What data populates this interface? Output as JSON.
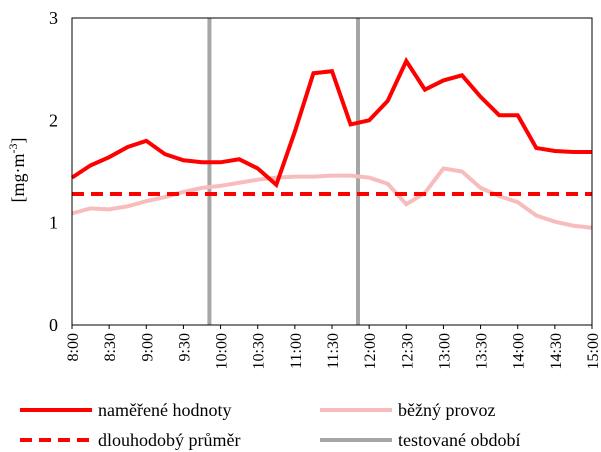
{
  "chart_data": {
    "type": "line",
    "y_label": {
      "base": "[mg·m",
      "sup": "-3",
      "end": "]"
    },
    "x": [
      8,
      8.25,
      8.5,
      8.75,
      9,
      9.25,
      9.5,
      9.75,
      10,
      10.25,
      10.5,
      10.75,
      11,
      11.25,
      11.5,
      11.75,
      12,
      12.25,
      12.5,
      12.75,
      13,
      13.25,
      13.5,
      13.75,
      14,
      14.25,
      14.5,
      14.75,
      15
    ],
    "xlim": [
      8,
      15
    ],
    "xticks": [
      {
        "value": 8,
        "label": "8:00"
      },
      {
        "value": 8.5,
        "label": "8:30"
      },
      {
        "value": 9,
        "label": "9:00"
      },
      {
        "value": 9.5,
        "label": "9:30"
      },
      {
        "value": 10,
        "label": "10:00"
      },
      {
        "value": 10.5,
        "label": "10:30"
      },
      {
        "value": 11,
        "label": "11:00"
      },
      {
        "value": 11.5,
        "label": "11:30"
      },
      {
        "value": 12,
        "label": "12:00"
      },
      {
        "value": 12.5,
        "label": "12:30"
      },
      {
        "value": 13,
        "label": "13:00"
      },
      {
        "value": 13.5,
        "label": "13:30"
      },
      {
        "value": 14,
        "label": "14:00"
      },
      {
        "value": 14.5,
        "label": "14:30"
      },
      {
        "value": 15,
        "label": "15:00"
      }
    ],
    "ylim": [
      0,
      3
    ],
    "yticks": [
      0,
      1,
      2,
      3
    ],
    "series": [
      {
        "name": "naměřené hodnoty",
        "color": "#ff0000",
        "dash": false,
        "values": [
          1.44,
          1.56,
          1.64,
          1.74,
          1.8,
          1.67,
          1.61,
          1.59,
          1.59,
          1.62,
          1.53,
          1.37,
          1.89,
          2.46,
          2.48,
          1.96,
          2.0,
          2.19,
          2.58,
          2.3,
          2.39,
          2.44,
          2.23,
          2.05,
          2.05,
          1.73,
          1.7,
          1.69,
          1.69
        ]
      },
      {
        "name": "běžný provoz",
        "color": "#f8bcbc",
        "dash": false,
        "values": [
          1.09,
          1.14,
          1.13,
          1.16,
          1.21,
          1.25,
          1.3,
          1.34,
          1.36,
          1.39,
          1.42,
          1.44,
          1.45,
          1.45,
          1.46,
          1.46,
          1.44,
          1.38,
          1.18,
          1.29,
          1.53,
          1.5,
          1.34,
          1.26,
          1.2,
          1.07,
          1.01,
          0.97,
          0.95
        ]
      },
      {
        "name": "dlouhodobý průměr",
        "color": "#ff0000",
        "dash": true,
        "values": [
          1.28,
          1.28,
          1.28,
          1.28,
          1.28,
          1.28,
          1.28,
          1.28,
          1.28,
          1.28,
          1.28,
          1.28,
          1.28,
          1.28,
          1.28,
          1.28,
          1.28,
          1.28,
          1.28,
          1.28,
          1.28,
          1.28,
          1.28,
          1.28,
          1.28,
          1.28,
          1.28,
          1.28,
          1.28
        ]
      }
    ],
    "test_period": {
      "name": "testované období",
      "color": "#a6a6a6",
      "x": [
        9.85,
        11.85
      ]
    }
  }
}
